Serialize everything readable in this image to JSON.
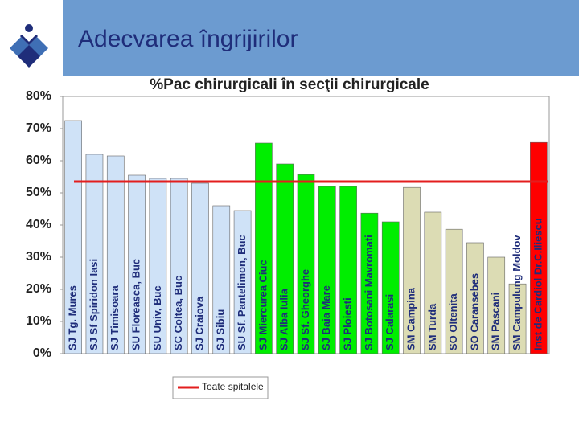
{
  "header": {
    "title": "Adecvarea îngrijirilor"
  },
  "chart_data": {
    "type": "bar",
    "title": "%Pac chirurgicali în secţii chirurgicale",
    "categories": [
      "SJ Tg. Mures",
      "SJ Sf Spiridon Iasi",
      "SJ Timisoara",
      "SU Floreasca, Buc",
      "SU Univ, Buc",
      "SC Coltea, Buc",
      "SJ Craiova",
      "SJ Sibiu",
      "SU Sf. Pantelimon, Buc",
      "SJ Miercurea Ciuc",
      "SJ Alba Iulia",
      "SJ Sf. Gheorghe",
      "SJ Baia Mare",
      "SJ Ploiesti",
      "SJ Botosani Mavromati",
      "SJ Calarasi",
      "SM Campina",
      "SM Turda",
      "SO Oltenita",
      "SO Caransebes",
      "SM Pascani",
      "SM Campulung Moldov",
      "Inst de Cardiol Dr.C.Iliescu"
    ],
    "values": [
      72.5,
      62,
      61.5,
      55.5,
      54.5,
      54.5,
      53,
      46,
      44.5,
      65.5,
      59,
      55.7,
      52,
      52,
      43.7,
      41,
      51.7,
      44,
      38.7,
      34.5,
      30,
      21.7,
      65.7
    ],
    "colors": [
      "#cfe2f7",
      "#cfe2f7",
      "#cfe2f7",
      "#cfe2f7",
      "#cfe2f7",
      "#cfe2f7",
      "#cfe2f7",
      "#cfe2f7",
      "#cfe2f7",
      "#00ee00",
      "#00ee00",
      "#00ee00",
      "#00ee00",
      "#00ee00",
      "#00ee00",
      "#00ee00",
      "#dcdcb4",
      "#dcdcb4",
      "#dcdcb4",
      "#dcdcb4",
      "#dcdcb4",
      "#dcdcb4",
      "#ff0000"
    ],
    "reference_line": {
      "name": "Toate spitalele",
      "value": 53.5,
      "color": "#e31e1e"
    },
    "ylim": [
      0,
      80
    ],
    "yticks": [
      {
        "value": 0,
        "label": "0%"
      },
      {
        "value": 10,
        "label": "10%"
      },
      {
        "value": 20,
        "label": "20%"
      },
      {
        "value": 30,
        "label": "30%"
      },
      {
        "value": 40,
        "label": "40%"
      },
      {
        "value": 50,
        "label": "50%"
      },
      {
        "value": 60,
        "label": "60%"
      },
      {
        "value": 70,
        "label": "70%"
      },
      {
        "value": 80,
        "label": "80%"
      }
    ]
  }
}
